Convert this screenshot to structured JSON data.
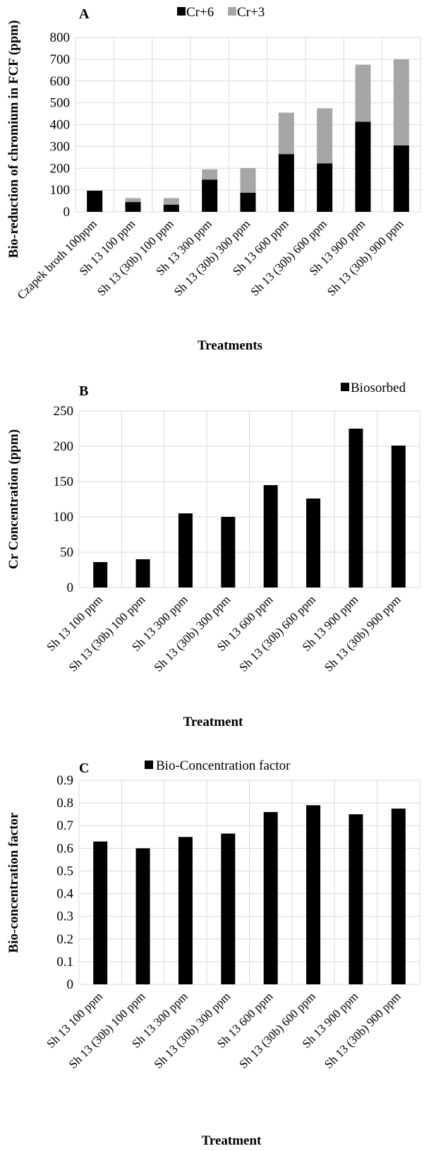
{
  "chart_data": [
    {
      "type": "bar",
      "stacked": true,
      "panel_label": "A",
      "title": "",
      "xlabel": "Treatments",
      "ylabel": "Bio-reduction of chromium in FCF (ppm)",
      "ylim": [
        0,
        800
      ],
      "yticks": [
        0,
        100,
        200,
        300,
        400,
        500,
        600,
        700,
        800
      ],
      "grid": true,
      "legend_position": "top-center",
      "categories": [
        "Czapek broth 100ppm",
        "Sh 13 100 ppm",
        "Sh 13 (30b) 100 ppm",
        "Sh 13 300 ppm",
        "Sh 13 (30b) 300 ppm",
        "Sh 13 600 ppm",
        "Sh 13 (30b) 600 ppm",
        "Sh 13 900 ppm",
        "Sh 13 (30b) 900 ppm"
      ],
      "series": [
        {
          "name": "Cr+6",
          "color": "#000000",
          "values": [
            97,
            45,
            33,
            148,
            88,
            265,
            222,
            413,
            305
          ]
        },
        {
          "name": "Cr+3",
          "color": "#a6a6a6",
          "values": [
            0,
            18,
            30,
            47,
            113,
            190,
            253,
            262,
            395
          ]
        }
      ]
    },
    {
      "type": "bar",
      "panel_label": "B",
      "title": "",
      "xlabel": "Treatment",
      "ylabel": "Cr Concentration (ppm)",
      "ylim": [
        0,
        250
      ],
      "yticks": [
        0,
        50,
        100,
        150,
        200,
        250
      ],
      "grid": true,
      "legend_position": "top-right",
      "categories": [
        "Sh 13 100 ppm",
        "Sh 13 (30b) 100 ppm",
        "Sh 13 300 ppm",
        "Sh 13 (30b) 300 ppm",
        "Sh 13 600 ppm",
        "Sh 13 (30b) 600 ppm",
        "Sh 13 900 ppm",
        "Sh 13 (30b) 900 ppm"
      ],
      "series": [
        {
          "name": "Biosorbed",
          "color": "#000000",
          "values": [
            36,
            40,
            105,
            100,
            145,
            126,
            225,
            201
          ]
        }
      ]
    },
    {
      "type": "bar",
      "panel_label": "C",
      "title": "",
      "xlabel": "Treatment",
      "ylabel": "Bio-concentration factor",
      "ylim": [
        0,
        0.9
      ],
      "yticks": [
        "0",
        "0.1",
        "0.2",
        "0.3",
        "0.4",
        "0.5",
        "0.6",
        "0.7",
        "0.8",
        "0.9"
      ],
      "grid": true,
      "legend_position": "top-center",
      "categories": [
        "Sh 13 100 ppm",
        "Sh 13 (30b) 100 ppm",
        "Sh 13 300 ppm",
        "Sh 13 (30b) 300 ppm",
        "Sh 13 600 ppm",
        "Sh 13 (30b) 600 ppm",
        "Sh 13 900 ppm",
        "Sh 13 (30b) 900 ppm"
      ],
      "series": [
        {
          "name": "Bio-Concentration factor",
          "color": "#000000",
          "values": [
            0.63,
            0.6,
            0.65,
            0.665,
            0.76,
            0.79,
            0.75,
            0.775
          ]
        }
      ]
    }
  ]
}
